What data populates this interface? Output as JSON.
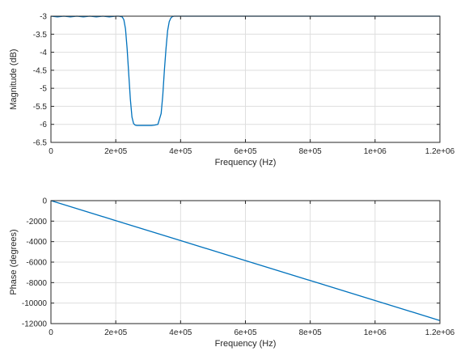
{
  "chart_data": [
    {
      "type": "line",
      "xlabel": "Frequency (Hz)",
      "ylabel": "Magnitude (dB)",
      "xlim": [
        0,
        1200000
      ],
      "ylim": [
        -6.5,
        -3
      ],
      "xticks": [
        0,
        200000,
        400000,
        600000,
        800000,
        1000000,
        1200000
      ],
      "xtick_labels": [
        "0",
        "2e+05",
        "4e+05",
        "6e+05",
        "8e+05",
        "1e+06",
        "1.2e+06"
      ],
      "yticks": [
        -3,
        -3.5,
        -4,
        -4.5,
        -5,
        -5.5,
        -6,
        -6.5
      ],
      "ytick_labels": [
        "-3",
        "-3.5",
        "-4",
        "-4.5",
        "-5",
        "-5.5",
        "-6",
        "-6.5"
      ],
      "grid": true,
      "series": [
        {
          "color": "#0072bd",
          "x": [
            0,
            20000,
            40000,
            60000,
            80000,
            100000,
            120000,
            140000,
            160000,
            180000,
            200000,
            210000,
            220000,
            225000,
            230000,
            235000,
            240000,
            245000,
            250000,
            255000,
            260000,
            265000,
            270000,
            275000,
            280000,
            290000,
            300000,
            310000,
            320000,
            330000,
            340000,
            345000,
            350000,
            355000,
            360000,
            365000,
            370000,
            375000,
            380000,
            385000,
            390000,
            400000,
            420000,
            450000,
            500000,
            600000,
            700000,
            800000,
            900000,
            1000000,
            1100000,
            1200000
          ],
          "y": [
            -3.0,
            -3.02,
            -3.0,
            -3.02,
            -3.0,
            -3.02,
            -3.0,
            -3.02,
            -3.0,
            -3.02,
            -3.0,
            -3.0,
            -3.02,
            -3.1,
            -3.35,
            -3.9,
            -4.6,
            -5.3,
            -5.8,
            -5.98,
            -6.02,
            -6.03,
            -6.03,
            -6.03,
            -6.03,
            -6.03,
            -6.03,
            -6.03,
            -6.02,
            -6.0,
            -5.7,
            -5.2,
            -4.5,
            -3.9,
            -3.4,
            -3.15,
            -3.05,
            -3.01,
            -3.0,
            -3.0,
            -3.0,
            -3.0,
            -3.0,
            -3.0,
            -3.0,
            -3.0,
            -3.0,
            -3.0,
            -3.0,
            -3.0,
            -3.0,
            -3.0
          ]
        }
      ]
    },
    {
      "type": "line",
      "xlabel": "Frequency (Hz)",
      "ylabel": "Phase (degrees)",
      "xlim": [
        0,
        1200000
      ],
      "ylim": [
        -12000,
        0
      ],
      "xticks": [
        0,
        200000,
        400000,
        600000,
        800000,
        1000000,
        1200000
      ],
      "xtick_labels": [
        "0",
        "2e+05",
        "4e+05",
        "6e+05",
        "8e+05",
        "1e+06",
        "1.2e+06"
      ],
      "yticks": [
        0,
        -2000,
        -4000,
        -6000,
        -8000,
        -10000,
        -12000
      ],
      "ytick_labels": [
        "0",
        "-2000",
        "-4000",
        "-6000",
        "-8000",
        "-10000",
        "-12000"
      ],
      "grid": true,
      "series": [
        {
          "color": "#0072bd",
          "x": [
            0,
            200000,
            400000,
            600000,
            800000,
            1000000,
            1200000
          ],
          "y": [
            0,
            -1950,
            -3900,
            -5850,
            -7800,
            -9750,
            -11700
          ]
        }
      ]
    }
  ]
}
